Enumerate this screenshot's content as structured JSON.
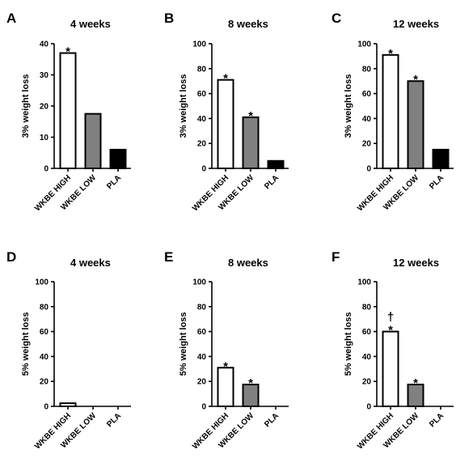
{
  "colors": {
    "WKBE HIGH": "#ffffff",
    "WKBE LOW": "#808080",
    "PLA": "#000000"
  },
  "chart_data": [
    {
      "type": "bar",
      "panel": "A",
      "title": "4 weeks",
      "ylabel": "3% weight loss",
      "categories": [
        "WKBE HIGH",
        "WKBE LOW",
        "PLA"
      ],
      "values": [
        37,
        17.5,
        6
      ],
      "ylim": [
        0,
        40
      ],
      "yticks": [
        "0",
        "10",
        "20",
        "30",
        "40"
      ],
      "markers": [
        "*",
        "",
        ""
      ]
    },
    {
      "type": "bar",
      "panel": "B",
      "title": "8 weeks",
      "ylabel": "3% weight loss",
      "categories": [
        "WKBE HIGH",
        "WKBE LOW",
        "PLA"
      ],
      "values": [
        71,
        41,
        6
      ],
      "ylim": [
        0,
        100
      ],
      "yticks": [
        "0",
        "20",
        "40",
        "60",
        "80",
        "100"
      ],
      "markers": [
        "*",
        "*",
        ""
      ]
    },
    {
      "type": "bar",
      "panel": "C",
      "title": "12 weeks",
      "ylabel": "3% weight loss",
      "categories": [
        "WKBE HIGH",
        "WKBE LOW",
        "PLA"
      ],
      "values": [
        91,
        70,
        15
      ],
      "ylim": [
        0,
        100
      ],
      "yticks": [
        "0",
        "20",
        "40",
        "60",
        "80",
        "100"
      ],
      "markers": [
        "*",
        "*",
        ""
      ]
    },
    {
      "type": "bar",
      "panel": "D",
      "title": "4 weeks",
      "ylabel": "5% weight loss",
      "categories": [
        "WKBE HIGH",
        "WKBE LOW",
        "PLA"
      ],
      "values": [
        2.5,
        0,
        0
      ],
      "ylim": [
        0,
        100
      ],
      "yticks": [
        "0",
        "20",
        "40",
        "60",
        "80",
        "100"
      ],
      "markers": [
        "",
        "",
        ""
      ]
    },
    {
      "type": "bar",
      "panel": "E",
      "title": "8 weeks",
      "ylabel": "5% weight loss",
      "categories": [
        "WKBE HIGH",
        "WKBE LOW",
        "PLA"
      ],
      "values": [
        31,
        17.5,
        0
      ],
      "ylim": [
        0,
        100
      ],
      "yticks": [
        "0",
        "20",
        "40",
        "60",
        "80",
        "100"
      ],
      "markers": [
        "*",
        "*",
        ""
      ]
    },
    {
      "type": "bar",
      "panel": "F",
      "title": "12 weeks",
      "ylabel": "5% weight loss",
      "categories": [
        "WKBE HIGH",
        "WKBE LOW",
        "PLA"
      ],
      "values": [
        60,
        17.5,
        0
      ],
      "ylim": [
        0,
        100
      ],
      "yticks": [
        "0",
        "20",
        "40",
        "60",
        "80",
        "100"
      ],
      "markers": [
        "†\n*",
        "*",
        ""
      ]
    }
  ]
}
